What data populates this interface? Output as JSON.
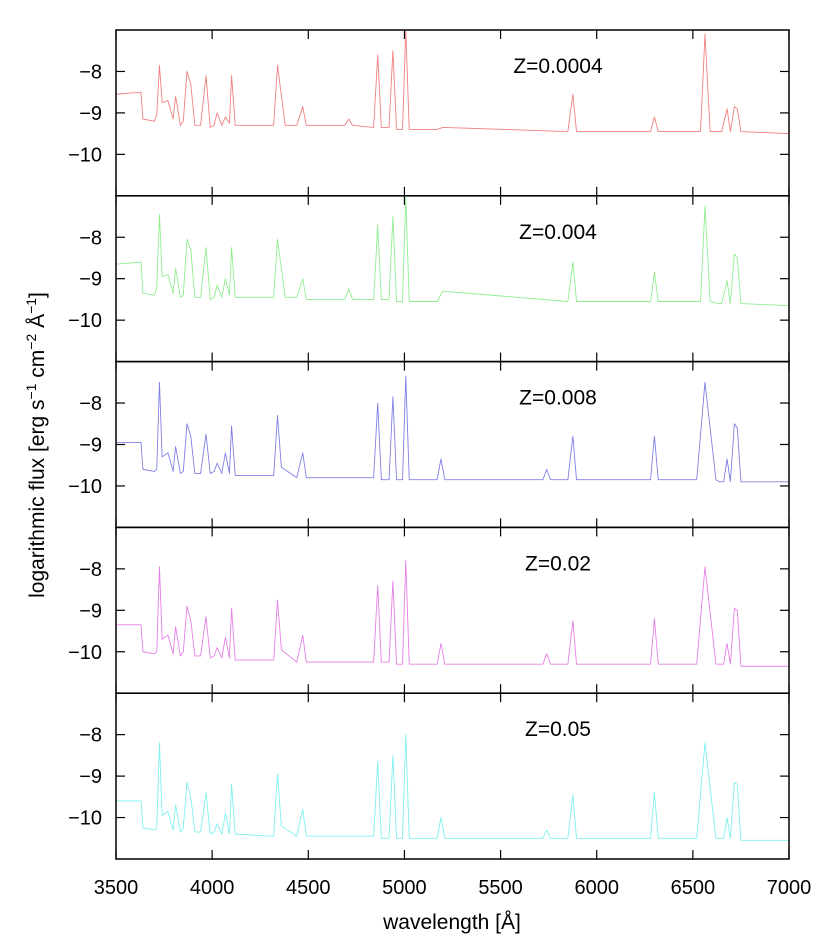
{
  "chart_data": {
    "type": "line",
    "layout": "5 vertically stacked panels sharing the x axis",
    "xlabel": "wavelength [Å]",
    "ylabel": {
      "text_parts": [
        "logarithmic flux [erg s",
        "−1",
        " cm",
        "−2",
        " Å",
        "−1",
        "]"
      ]
    },
    "xlim": [
      3500,
      7000
    ],
    "x_ticks": [
      3500,
      4000,
      4500,
      5000,
      5500,
      6000,
      6500,
      7000
    ],
    "x_tick_labels": [
      "3500",
      "4000",
      "4500",
      "5000",
      "5500",
      "6000",
      "6500",
      "7000"
    ],
    "y_ticks": [
      -8,
      -9,
      -10
    ],
    "y_tick_labels": [
      "−8",
      "−9",
      "−10"
    ],
    "grid": false,
    "panels": [
      {
        "label": "Z=0.0004",
        "color": "#f08080",
        "ylim": [
          -11,
          -7
        ],
        "x": [
          3500,
          3630,
          3640,
          3700,
          3712,
          3726,
          3740,
          3770,
          3797,
          3810,
          3835,
          3850,
          3869,
          3889,
          3910,
          3940,
          3968,
          3990,
          4010,
          4026,
          4050,
          4069,
          4090,
          4101,
          4120,
          4320,
          4340,
          4380,
          4440,
          4471,
          4490,
          4690,
          4711,
          4730,
          4840,
          4861,
          4880,
          4920,
          4940,
          4959,
          4980,
          4990,
          5007,
          5025,
          5170,
          5200,
          5850,
          5876,
          5895,
          6280,
          6300,
          6320,
          6540,
          6563,
          6590,
          6630,
          6650,
          6678,
          6695,
          6716,
          6731,
          6750,
          7000
        ],
        "y": [
          -8.55,
          -8.5,
          -9.15,
          -9.2,
          -9.05,
          -7.85,
          -8.75,
          -8.7,
          -9.15,
          -8.6,
          -9.3,
          -9.2,
          -8.0,
          -8.3,
          -9.3,
          -9.3,
          -8.1,
          -9.35,
          -9.3,
          -9.0,
          -9.3,
          -9.1,
          -9.25,
          -8.1,
          -9.3,
          -9.3,
          -7.85,
          -9.3,
          -9.3,
          -8.85,
          -9.3,
          -9.3,
          -9.15,
          -9.3,
          -9.35,
          -7.6,
          -9.35,
          -9.35,
          -7.5,
          -9.4,
          -9.4,
          -9.4,
          -7.0,
          -9.4,
          -9.4,
          -9.35,
          -9.45,
          -8.55,
          -9.45,
          -9.45,
          -9.1,
          -9.45,
          -9.45,
          -7.1,
          -9.45,
          -9.45,
          -9.45,
          -8.9,
          -9.45,
          -8.85,
          -8.9,
          -9.45,
          -9.5
        ]
      },
      {
        "label": "Z=0.004",
        "color": "#90ee90",
        "ylim": [
          -11,
          -7
        ],
        "x": [
          3500,
          3630,
          3640,
          3700,
          3712,
          3726,
          3740,
          3770,
          3797,
          3810,
          3835,
          3850,
          3869,
          3889,
          3910,
          3940,
          3968,
          3990,
          4010,
          4026,
          4050,
          4069,
          4090,
          4101,
          4120,
          4320,
          4340,
          4380,
          4440,
          4471,
          4490,
          4690,
          4711,
          4730,
          4840,
          4861,
          4880,
          4920,
          4940,
          4959,
          4980,
          4990,
          5007,
          5025,
          5170,
          5200,
          5850,
          5876,
          5895,
          6280,
          6300,
          6320,
          6540,
          6563,
          6590,
          6630,
          6650,
          6678,
          6695,
          6716,
          6731,
          6750,
          7000
        ],
        "y": [
          -8.65,
          -8.6,
          -9.35,
          -9.4,
          -9.2,
          -7.45,
          -8.95,
          -8.9,
          -9.35,
          -8.75,
          -9.45,
          -9.4,
          -8.05,
          -8.3,
          -9.45,
          -9.45,
          -8.25,
          -9.5,
          -9.45,
          -9.15,
          -9.45,
          -9.0,
          -9.4,
          -8.25,
          -9.45,
          -9.45,
          -8.05,
          -9.45,
          -9.45,
          -9.0,
          -9.5,
          -9.5,
          -9.25,
          -9.5,
          -9.5,
          -7.7,
          -9.5,
          -9.5,
          -7.5,
          -9.55,
          -9.55,
          -9.55,
          -7.05,
          -9.55,
          -9.55,
          -9.3,
          -9.55,
          -8.6,
          -9.55,
          -9.55,
          -8.85,
          -9.55,
          -9.55,
          -7.25,
          -9.55,
          -9.6,
          -9.6,
          -9.05,
          -9.6,
          -8.4,
          -8.5,
          -9.6,
          -9.65
        ]
      },
      {
        "label": "Z=0.008",
        "color": "#8080e6",
        "ylim": [
          -11,
          -7
        ],
        "x": [
          3500,
          3630,
          3640,
          3700,
          3712,
          3726,
          3740,
          3770,
          3797,
          3810,
          3835,
          3850,
          3869,
          3889,
          3910,
          3940,
          3968,
          3990,
          4010,
          4026,
          4050,
          4069,
          4090,
          4101,
          4120,
          4320,
          4340,
          4360,
          4440,
          4471,
          4490,
          4840,
          4861,
          4880,
          4920,
          4940,
          4959,
          4980,
          4990,
          5007,
          5025,
          5170,
          5190,
          5210,
          5720,
          5740,
          5760,
          5850,
          5876,
          5895,
          6280,
          6300,
          6320,
          6520,
          6563,
          6620,
          6640,
          6660,
          6678,
          6695,
          6716,
          6731,
          6750,
          7000
        ],
        "y": [
          -8.95,
          -8.95,
          -9.6,
          -9.65,
          -9.6,
          -7.5,
          -9.3,
          -9.2,
          -9.65,
          -9.05,
          -9.7,
          -9.65,
          -8.5,
          -8.8,
          -9.7,
          -9.7,
          -8.75,
          -9.7,
          -9.65,
          -9.45,
          -9.7,
          -9.2,
          -9.7,
          -8.55,
          -9.75,
          -9.75,
          -8.3,
          -9.55,
          -9.8,
          -9.2,
          -9.8,
          -9.8,
          -8.0,
          -9.85,
          -9.85,
          -7.85,
          -9.85,
          -9.85,
          -9.85,
          -7.35,
          -9.85,
          -9.85,
          -9.35,
          -9.85,
          -9.85,
          -9.6,
          -9.85,
          -9.85,
          -8.8,
          -9.85,
          -9.85,
          -8.8,
          -9.85,
          -9.85,
          -7.5,
          -9.85,
          -9.9,
          -9.9,
          -9.35,
          -9.9,
          -8.5,
          -8.6,
          -9.9,
          -9.9
        ]
      },
      {
        "label": "Z=0.02",
        "color": "#e680e6",
        "ylim": [
          -11,
          -7
        ],
        "x": [
          3500,
          3630,
          3640,
          3700,
          3712,
          3726,
          3740,
          3770,
          3797,
          3810,
          3835,
          3850,
          3869,
          3889,
          3910,
          3940,
          3968,
          3990,
          4010,
          4026,
          4050,
          4069,
          4090,
          4101,
          4120,
          4320,
          4340,
          4360,
          4440,
          4471,
          4490,
          4840,
          4861,
          4880,
          4920,
          4940,
          4959,
          4980,
          4990,
          5007,
          5025,
          5170,
          5190,
          5210,
          5720,
          5740,
          5760,
          5850,
          5876,
          5895,
          6280,
          6300,
          6320,
          6520,
          6563,
          6620,
          6640,
          6660,
          6678,
          6695,
          6716,
          6731,
          6750,
          7000
        ],
        "y": [
          -9.35,
          -9.35,
          -10.0,
          -10.05,
          -10.0,
          -7.95,
          -9.7,
          -9.6,
          -10.05,
          -9.4,
          -10.1,
          -10.0,
          -8.9,
          -9.25,
          -10.1,
          -10.1,
          -9.15,
          -10.15,
          -10.1,
          -9.9,
          -10.15,
          -9.65,
          -10.15,
          -8.95,
          -10.2,
          -10.2,
          -8.75,
          -9.95,
          -10.25,
          -9.6,
          -10.25,
          -10.25,
          -8.4,
          -10.25,
          -10.25,
          -8.3,
          -10.3,
          -10.3,
          -10.3,
          -7.8,
          -10.3,
          -10.3,
          -9.8,
          -10.3,
          -10.3,
          -10.05,
          -10.3,
          -10.3,
          -9.25,
          -10.3,
          -10.3,
          -9.2,
          -10.3,
          -10.3,
          -7.95,
          -10.3,
          -10.3,
          -10.3,
          -9.8,
          -10.3,
          -8.95,
          -9.0,
          -10.35,
          -10.35
        ]
      },
      {
        "label": "Z=0.05",
        "color": "#80f0f0",
        "ylim": [
          -11,
          -7
        ],
        "x": [
          3500,
          3630,
          3640,
          3700,
          3712,
          3726,
          3740,
          3770,
          3797,
          3810,
          3835,
          3850,
          3869,
          3889,
          3910,
          3940,
          3968,
          3990,
          4010,
          4026,
          4050,
          4069,
          4090,
          4101,
          4120,
          4320,
          4340,
          4360,
          4440,
          4471,
          4490,
          4840,
          4861,
          4880,
          4920,
          4940,
          4959,
          4980,
          4990,
          5007,
          5025,
          5170,
          5190,
          5210,
          5720,
          5740,
          5760,
          5850,
          5876,
          5895,
          6280,
          6300,
          6320,
          6520,
          6563,
          6620,
          6640,
          6660,
          6678,
          6695,
          6716,
          6731,
          6750,
          7000
        ],
        "y": [
          -9.6,
          -9.6,
          -10.25,
          -10.3,
          -10.25,
          -8.2,
          -9.95,
          -9.85,
          -10.3,
          -9.7,
          -10.35,
          -10.25,
          -9.15,
          -9.5,
          -10.35,
          -10.35,
          -9.4,
          -10.4,
          -10.35,
          -10.15,
          -10.4,
          -9.9,
          -10.4,
          -9.2,
          -10.4,
          -10.45,
          -8.95,
          -10.2,
          -10.45,
          -9.8,
          -10.45,
          -10.45,
          -8.65,
          -10.5,
          -10.5,
          -8.5,
          -10.5,
          -10.5,
          -10.5,
          -8.0,
          -10.5,
          -10.5,
          -10.0,
          -10.5,
          -10.5,
          -10.3,
          -10.5,
          -10.5,
          -9.45,
          -10.5,
          -10.5,
          -9.4,
          -10.5,
          -10.5,
          -8.2,
          -10.5,
          -10.5,
          -10.5,
          -10.0,
          -10.5,
          -9.15,
          -9.2,
          -10.55,
          -10.55
        ]
      }
    ]
  }
}
